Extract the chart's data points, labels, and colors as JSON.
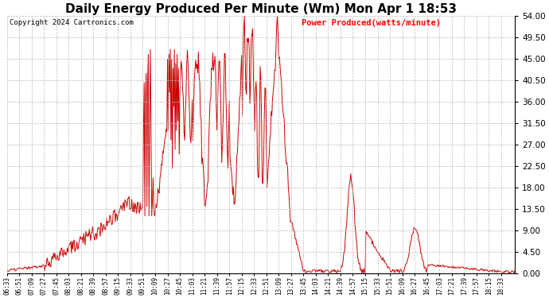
{
  "title": "Daily Energy Produced Per Minute (Wm) Mon Apr 1 18:53",
  "copyright_text": "Copyright 2024 Cartronics.com",
  "legend_text": "Power Produced(watts/minute)",
  "legend_color": "#ff0000",
  "copyright_color": "#000000",
  "title_fontsize": 11,
  "background_color": "#ffffff",
  "plot_bg_color": "#ffffff",
  "line_color": "#cc0000",
  "grid_color": "#bbbbbb",
  "yticks": [
    0.0,
    4.5,
    9.0,
    13.5,
    18.0,
    22.5,
    27.0,
    31.5,
    36.0,
    40.5,
    45.0,
    49.5,
    54.0
  ],
  "ymax": 54.0,
  "ymin": 0.0,
  "xtick_labels": [
    "06:33",
    "06:51",
    "07:09",
    "07:27",
    "07:45",
    "08:03",
    "08:21",
    "08:39",
    "08:57",
    "09:15",
    "09:33",
    "09:51",
    "10:09",
    "10:27",
    "10:45",
    "11:03",
    "11:21",
    "11:39",
    "11:57",
    "12:15",
    "12:33",
    "12:51",
    "13:09",
    "13:27",
    "13:45",
    "14:03",
    "14:21",
    "14:39",
    "14:57",
    "15:15",
    "15:33",
    "15:51",
    "16:09",
    "16:27",
    "16:45",
    "17:03",
    "17:21",
    "17:39",
    "17:57",
    "18:15",
    "18:33"
  ]
}
